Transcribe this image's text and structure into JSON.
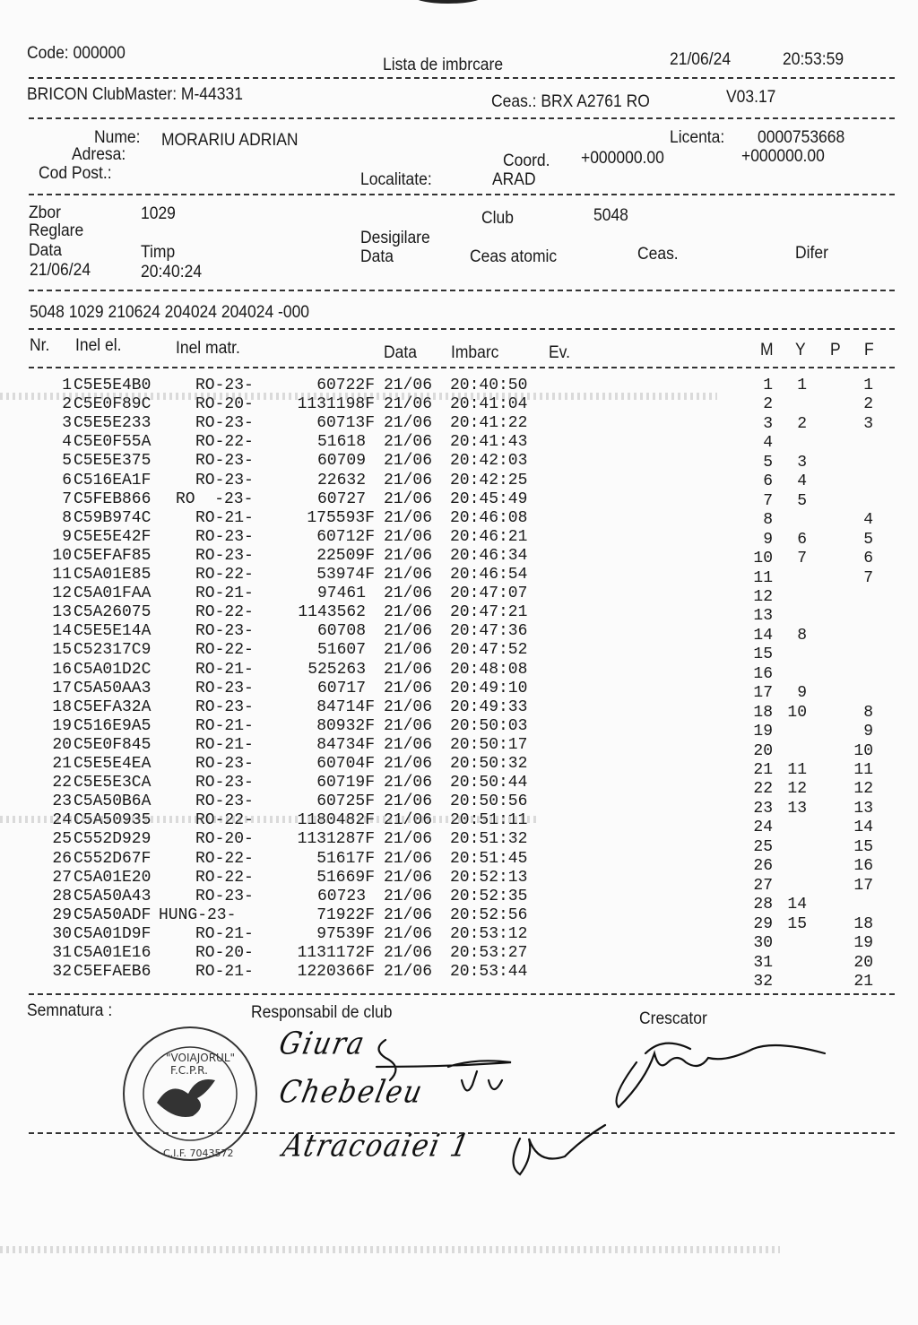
{
  "header": {
    "code": "Code: 000000",
    "title": "Lista de imbrcare",
    "date": "21/06/24",
    "time": "20:53:59",
    "clubmaster": "BRICON ClubMaster: M-44331",
    "clock": "Ceas.: BRX A2761 RO",
    "version": "V03.17"
  },
  "fancier": {
    "name_label": "Nume:",
    "name": "MORARIU ADRIAN",
    "license_label": "Licenta:",
    "license": "0000753668",
    "address_label": "Adresa:",
    "coord_label": "Coord.",
    "coord_x": "+000000.00",
    "coord_y": "+000000.00",
    "postcode_label": "Cod Post.:",
    "locality_label": "Localitate:",
    "locality": "ARAD"
  },
  "flight": {
    "zbor_label": "Zbor",
    "zbor": "1029",
    "club_label": "Club",
    "club": "5048",
    "reglare_label": "Reglare",
    "data_label": "Data",
    "timp_label": "Timp",
    "reglare_date": "21/06/24",
    "reglare_time": "20:40:24",
    "desigilare_label": "Desigilare",
    "desig_data_label": "Data",
    "atomic_label": "Ceas atomic",
    "ceas_label": "Ceas.",
    "difer_label": "Difer",
    "code_line": "5048 1029 210624 204024 204024 -000"
  },
  "table": {
    "headers": {
      "nr": "Nr.",
      "ring_el": "Inel el.",
      "ring_matr": "Inel matr.",
      "data": "Data",
      "imbarc": "Imbarc",
      "ev": "Ev.",
      "m": "M",
      "y": "Y",
      "p": "P",
      "f": "F"
    },
    "rows": [
      {
        "nr": "1",
        "el": "C5E5E4B0",
        "cc": "RO-23-",
        "num": "60722F",
        "date": "21/06",
        "time": "20:40:50",
        "m": "1",
        "y": "1",
        "f": "1"
      },
      {
        "nr": "2",
        "el": "C5E0F89C",
        "cc": "RO-20-",
        "num": "1131198F",
        "date": "21/06",
        "time": "20:41:04",
        "m": "2",
        "y": "",
        "f": "2"
      },
      {
        "nr": "3",
        "el": "C5E5E233",
        "cc": "RO-23-",
        "num": "60713F",
        "date": "21/06",
        "time": "20:41:22",
        "m": "3",
        "y": "2",
        "f": "3"
      },
      {
        "nr": "4",
        "el": "C5E0F55A",
        "cc": "RO-22-",
        "num": "51618",
        "date": "21/06",
        "time": "20:41:43",
        "m": "4",
        "y": "",
        "f": ""
      },
      {
        "nr": "5",
        "el": "C5E5E375",
        "cc": "RO-23-",
        "num": "60709",
        "date": "21/06",
        "time": "20:42:03",
        "m": "5",
        "y": "3",
        "f": ""
      },
      {
        "nr": "6",
        "el": "C516EA1F",
        "cc": "RO-23-",
        "num": "22632",
        "date": "21/06",
        "time": "20:42:25",
        "m": "6",
        "y": "4",
        "f": ""
      },
      {
        "nr": "7",
        "el": "C5FEB866",
        "cc": "RO  -23-",
        "num": "60727",
        "date": "21/06",
        "time": "20:45:49",
        "m": "7",
        "y": "5",
        "f": ""
      },
      {
        "nr": "8",
        "el": "C59B974C",
        "cc": "RO-21-",
        "num": "175593F",
        "date": "21/06",
        "time": "20:46:08",
        "m": "8",
        "y": "",
        "f": "4"
      },
      {
        "nr": "9",
        "el": "C5E5E42F",
        "cc": "RO-23-",
        "num": "60712F",
        "date": "21/06",
        "time": "20:46:21",
        "m": "9",
        "y": "6",
        "f": "5"
      },
      {
        "nr": "10",
        "el": "C5EFAF85",
        "cc": "RO-23-",
        "num": "22509F",
        "date": "21/06",
        "time": "20:46:34",
        "m": "10",
        "y": "7",
        "f": "6"
      },
      {
        "nr": "11",
        "el": "C5A01E85",
        "cc": "RO-22-",
        "num": "53974F",
        "date": "21/06",
        "time": "20:46:54",
        "m": "11",
        "y": "",
        "f": "7"
      },
      {
        "nr": "12",
        "el": "C5A01FAA",
        "cc": "RO-21-",
        "num": "97461",
        "date": "21/06",
        "time": "20:47:07",
        "m": "12",
        "y": "",
        "f": ""
      },
      {
        "nr": "13",
        "el": "C5A26075",
        "cc": "RO-22-",
        "num": "1143562",
        "date": "21/06",
        "time": "20:47:21",
        "m": "13",
        "y": "",
        "f": ""
      },
      {
        "nr": "14",
        "el": "C5E5E14A",
        "cc": "RO-23-",
        "num": "60708",
        "date": "21/06",
        "time": "20:47:36",
        "m": "14",
        "y": "8",
        "f": ""
      },
      {
        "nr": "15",
        "el": "C52317C9",
        "cc": "RO-22-",
        "num": "51607",
        "date": "21/06",
        "time": "20:47:52",
        "m": "15",
        "y": "",
        "f": ""
      },
      {
        "nr": "16",
        "el": "C5A01D2C",
        "cc": "RO-21-",
        "num": "525263",
        "date": "21/06",
        "time": "20:48:08",
        "m": "16",
        "y": "",
        "f": ""
      },
      {
        "nr": "17",
        "el": "C5A50AA3",
        "cc": "RO-23-",
        "num": "60717",
        "date": "21/06",
        "time": "20:49:10",
        "m": "17",
        "y": "9",
        "f": ""
      },
      {
        "nr": "18",
        "el": "C5EFA32A",
        "cc": "RO-23-",
        "num": "84714F",
        "date": "21/06",
        "time": "20:49:33",
        "m": "18",
        "y": "10",
        "f": "8"
      },
      {
        "nr": "19",
        "el": "C516E9A5",
        "cc": "RO-21-",
        "num": "80932F",
        "date": "21/06",
        "time": "20:50:03",
        "m": "19",
        "y": "",
        "f": "9"
      },
      {
        "nr": "20",
        "el": "C5E0F845",
        "cc": "RO-21-",
        "num": "84734F",
        "date": "21/06",
        "time": "20:50:17",
        "m": "20",
        "y": "",
        "f": "10"
      },
      {
        "nr": "21",
        "el": "C5E5E4EA",
        "cc": "RO-23-",
        "num": "60704F",
        "date": "21/06",
        "time": "20:50:32",
        "m": "21",
        "y": "11",
        "f": "11"
      },
      {
        "nr": "22",
        "el": "C5E5E3CA",
        "cc": "RO-23-",
        "num": "60719F",
        "date": "21/06",
        "time": "20:50:44",
        "m": "22",
        "y": "12",
        "f": "12"
      },
      {
        "nr": "23",
        "el": "C5A50B6A",
        "cc": "RO-23-",
        "num": "60725F",
        "date": "21/06",
        "time": "20:50:56",
        "m": "23",
        "y": "13",
        "f": "13"
      },
      {
        "nr": "24",
        "el": "C5A50935",
        "cc": "RO-22-",
        "num": "1180482F",
        "date": "21/06",
        "time": "20:51:11",
        "m": "24",
        "y": "",
        "f": "14"
      },
      {
        "nr": "25",
        "el": "C552D929",
        "cc": "RO-20-",
        "num": "1131287F",
        "date": "21/06",
        "time": "20:51:32",
        "m": "25",
        "y": "",
        "f": "15"
      },
      {
        "nr": "26",
        "el": "C552D67F",
        "cc": "RO-22-",
        "num": "51617F",
        "date": "21/06",
        "time": "20:51:45",
        "m": "26",
        "y": "",
        "f": "16"
      },
      {
        "nr": "27",
        "el": "C5A01E20",
        "cc": "RO-22-",
        "num": "51669F",
        "date": "21/06",
        "time": "20:52:13",
        "m": "27",
        "y": "",
        "f": "17"
      },
      {
        "nr": "28",
        "el": "C5A50A43",
        "cc": "RO-23-",
        "num": "60723",
        "date": "21/06",
        "time": "20:52:35",
        "m": "28",
        "y": "14",
        "f": ""
      },
      {
        "nr": "29",
        "el": "C5A50ADF",
        "cc": "HUNG-23-",
        "num": "71922F",
        "date": "21/06",
        "time": "20:52:56",
        "m": "29",
        "y": "15",
        "f": "18"
      },
      {
        "nr": "30",
        "el": "C5A01D9F",
        "cc": "RO-21-",
        "num": "97539F",
        "date": "21/06",
        "time": "20:53:12",
        "m": "30",
        "y": "",
        "f": "19"
      },
      {
        "nr": "31",
        "el": "C5A01E16",
        "cc": "RO-20-",
        "num": "1131172F",
        "date": "21/06",
        "time": "20:53:27",
        "m": "31",
        "y": "",
        "f": "20"
      },
      {
        "nr": "32",
        "el": "C5EFAEB6",
        "cc": "RO-21-",
        "num": "1220366F",
        "date": "21/06",
        "time": "20:53:44",
        "m": "32",
        "y": "",
        "f": "21"
      }
    ]
  },
  "footer": {
    "signature_label": "Semnatura :",
    "club_resp_label": "Responsabil de club",
    "breeder_label": "Crescator",
    "stamp_text": "ASOCIATIA \"VOIAJORUL\" ARAD F.C.P.R. C.I.F. 7043572",
    "handwriting": [
      "Giura",
      "Chebeleu",
      "Atracoaiei 1"
    ]
  }
}
